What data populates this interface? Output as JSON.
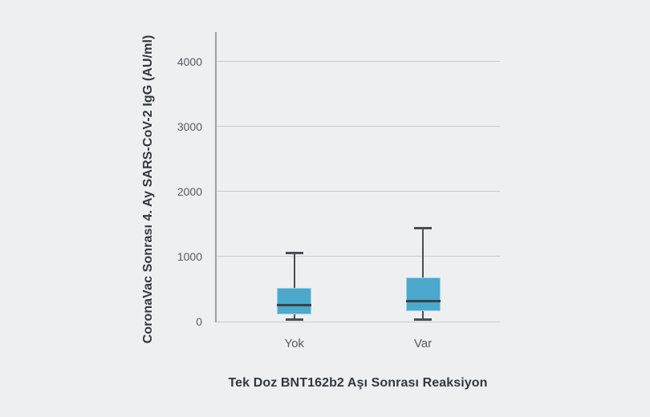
{
  "chart_data": {
    "type": "boxplot",
    "title": "",
    "xlabel": "Tek Doz BNT162b2 Aşı Sonrası Reaksiyon",
    "ylabel": "CoronaVac Sonrası 4. Ay SARS-CoV-2 IgG (AU/ml)",
    "categories": [
      "Yok",
      "Var"
    ],
    "yticks": [
      0,
      1000,
      2000,
      3000,
      4000
    ],
    "ylim": [
      0,
      4450
    ],
    "grid": true,
    "legend": "none",
    "boxes": [
      {
        "category": "Yok",
        "whisker_low": 35,
        "q1": 110,
        "median": 250,
        "q3": 520,
        "whisker_high": 1060
      },
      {
        "category": "Var",
        "whisker_low": 35,
        "q1": 160,
        "median": 320,
        "q3": 680,
        "whisker_high": 1440
      }
    ],
    "colors": {
      "background": "#edeff1",
      "box_fill": "#4ca8cd",
      "box_edge": "#9fd3e6",
      "median": "#3d4247",
      "whisker": "#4a4e52",
      "grid_line": "#c7cbce",
      "axis_line": "#9ba1a5",
      "tick_text": "#565b60",
      "title_text": "#32383e"
    }
  }
}
